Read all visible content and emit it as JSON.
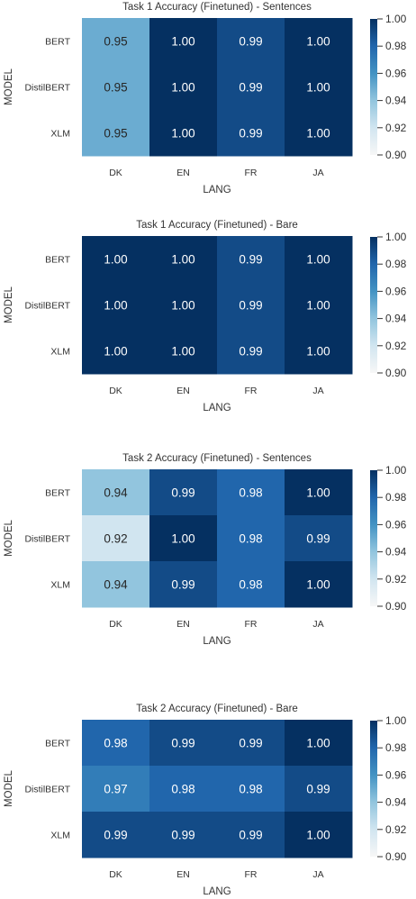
{
  "colorbar": {
    "vmin": 0.9,
    "vmax": 1.0,
    "ticks": [
      "1.00",
      "0.98",
      "0.96",
      "0.94",
      "0.92",
      "0.90"
    ],
    "colormap": [
      "#f7f7f7",
      "#d1e5f0",
      "#92c5de",
      "#4393c3",
      "#2166ac",
      "#053061"
    ]
  },
  "chart_data": [
    {
      "type": "heatmap",
      "title": "Task 1 Accuracy (Finetuned) - Sentences",
      "xlabel": "LANG",
      "ylabel": "MODEL",
      "x": [
        "DK",
        "EN",
        "FR",
        "JA"
      ],
      "y": [
        "BERT",
        "DistilBERT",
        "XLM"
      ],
      "values": [
        [
          0.95,
          1.0,
          0.99,
          1.0
        ],
        [
          0.95,
          1.0,
          0.99,
          1.0
        ],
        [
          0.95,
          1.0,
          0.99,
          1.0
        ]
      ],
      "labels": [
        [
          "0.95",
          "1.00",
          "0.99",
          "1.00"
        ],
        [
          "0.95",
          "1.00",
          "0.99",
          "1.00"
        ],
        [
          "0.95",
          "1.00",
          "0.99",
          "1.00"
        ]
      ],
      "vlim": [
        0.9,
        1.0
      ]
    },
    {
      "type": "heatmap",
      "title": "Task 1 Accuracy (Finetuned) - Bare",
      "xlabel": "LANG",
      "ylabel": "MODEL",
      "x": [
        "DK",
        "EN",
        "FR",
        "JA"
      ],
      "y": [
        "BERT",
        "DistilBERT",
        "XLM"
      ],
      "values": [
        [
          1.0,
          1.0,
          0.99,
          1.0
        ],
        [
          1.0,
          1.0,
          0.99,
          1.0
        ],
        [
          1.0,
          1.0,
          0.99,
          1.0
        ]
      ],
      "labels": [
        [
          "1.00",
          "1.00",
          "0.99",
          "1.00"
        ],
        [
          "1.00",
          "1.00",
          "0.99",
          "1.00"
        ],
        [
          "1.00",
          "1.00",
          "0.99",
          "1.00"
        ]
      ],
      "vlim": [
        0.9,
        1.0
      ]
    },
    {
      "type": "heatmap",
      "title": "Task 2 Accuracy (Finetuned) - Sentences",
      "xlabel": "LANG",
      "ylabel": "MODEL",
      "x": [
        "DK",
        "EN",
        "FR",
        "JA"
      ],
      "y": [
        "BERT",
        "DistilBERT",
        "XLM"
      ],
      "values": [
        [
          0.94,
          0.99,
          0.98,
          1.0
        ],
        [
          0.92,
          1.0,
          0.98,
          0.99
        ],
        [
          0.94,
          0.99,
          0.98,
          1.0
        ]
      ],
      "labels": [
        [
          "0.94",
          "0.99",
          "0.98",
          "1.00"
        ],
        [
          "0.92",
          "1.00",
          "0.98",
          "0.99"
        ],
        [
          "0.94",
          "0.99",
          "0.98",
          "1.00"
        ]
      ],
      "vlim": [
        0.9,
        1.0
      ]
    },
    {
      "type": "heatmap",
      "title": "Task 2 Accuracy (Finetuned) - Bare",
      "xlabel": "LANG",
      "ylabel": "MODEL",
      "x": [
        "DK",
        "EN",
        "FR",
        "JA"
      ],
      "y": [
        "BERT",
        "DistilBERT",
        "XLM"
      ],
      "values": [
        [
          0.98,
          0.99,
          0.99,
          1.0
        ],
        [
          0.97,
          0.98,
          0.98,
          0.99
        ],
        [
          0.99,
          0.99,
          0.99,
          1.0
        ]
      ],
      "labels": [
        [
          "0.98",
          "0.99",
          "0.99",
          "1.00"
        ],
        [
          "0.97",
          "0.98",
          "0.98",
          "0.99"
        ],
        [
          "0.99",
          "0.99",
          "0.99",
          "1.00"
        ]
      ],
      "vlim": [
        0.9,
        1.0
      ]
    }
  ]
}
